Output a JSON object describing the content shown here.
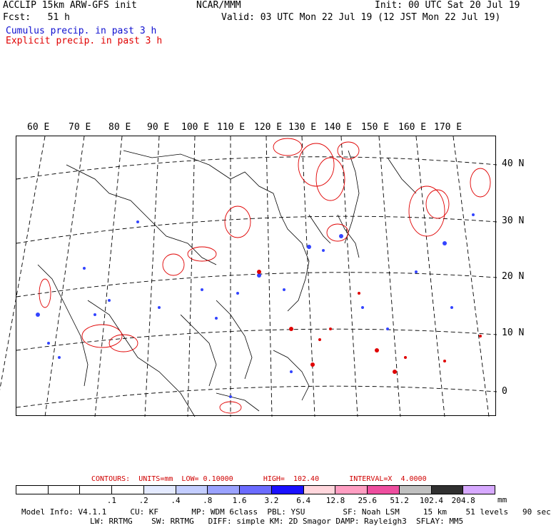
{
  "header": {
    "left1": "ACCLIP 15km ARW-GFS init",
    "center1": "NCAR/MMM",
    "right1": "Init: 00 UTC Sat 20 Jul 19",
    "left2": "Fcst:   51 h",
    "right2": "Valid: 03 UTC Mon 22 Jul 19 (12 JST Mon 22 Jul 19)",
    "legend_cumulus": "Cumulus precip. in past 3 h",
    "legend_explicit": "Explicit precip. in past 3 h"
  },
  "map": {
    "lon_labels": [
      "60 E",
      "70 E",
      "80 E",
      "90 E",
      "100 E",
      "110 E",
      "120 E",
      "130 E",
      "140 E",
      "150 E",
      "160 E",
      "170 E"
    ],
    "lat_labels": [
      "40 N",
      "30 N",
      "20 N",
      "10 N",
      "0"
    ]
  },
  "colors": {
    "cumulus": "#1f3bff",
    "explicit": "#e00000",
    "scale": [
      "#ffffff",
      "#ffffff",
      "#ffffff",
      "#ffffff",
      "#e4eaff",
      "#c3cdff",
      "#9aa2ff",
      "#6b6bff",
      "#1a10ff",
      "#ffd6dc",
      "#ff9ec2",
      "#ee4e9f",
      "#c0c0c0",
      "#303030",
      "#d7a9ff"
    ]
  },
  "footer": {
    "contours": "CONTOURS:  UNITS=mm  LOW= 0.10000       HIGH=  102.40       INTERVAL=X  4.0000",
    "scale_ticks": [
      ".1",
      ".2",
      ".4",
      ".8",
      "1.6",
      "3.2",
      "6.4",
      "12.8",
      "25.6",
      "51.2",
      "102.4",
      "204.8"
    ],
    "units": "mm",
    "model_line1": "Model Info: V4.1.1     CU: KF       MP: WDM 6class  PBL: YSU        SF: Noah LSM     15 km    51 levels   90 sec",
    "model_line2": "LW: RRTMG    SW: RRTMG   DIFF: simple KM: 2D Smagor DAMP: Rayleigh3  SFLAY: MM5"
  }
}
